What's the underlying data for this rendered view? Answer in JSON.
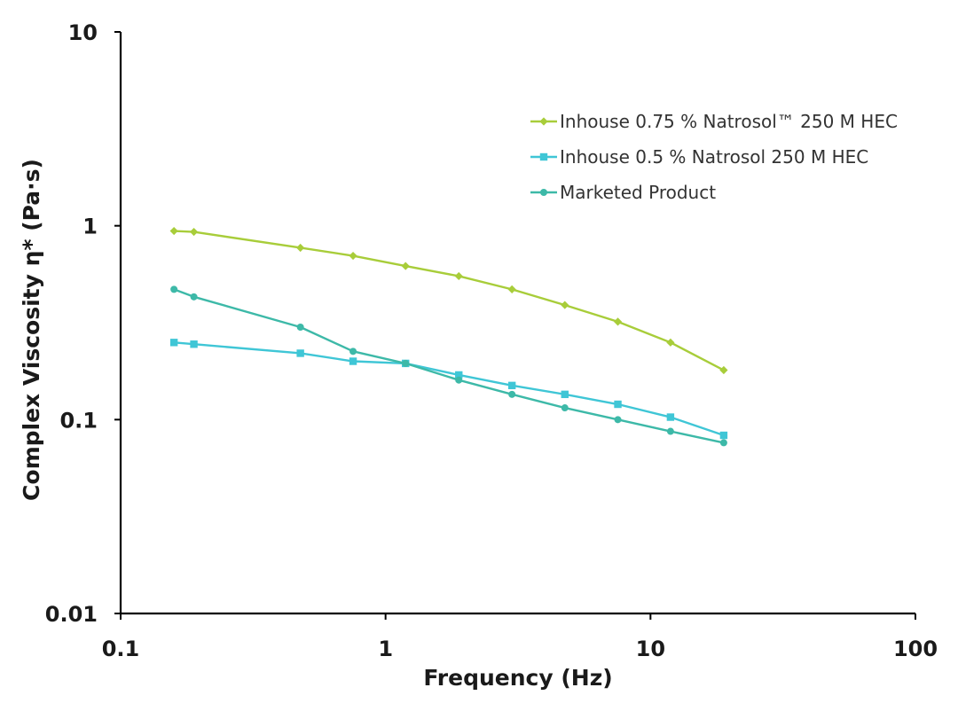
{
  "chart_data": {
    "type": "line",
    "xlabel": "Frequency (Hz)",
    "ylabel": "Complex Viscosity η* (Pa·s)",
    "x_scale": "log",
    "y_scale": "log",
    "xlim": [
      0.1,
      100
    ],
    "ylim": [
      0.01,
      10
    ],
    "x_ticks": [
      "0.1",
      "1",
      "10",
      "100"
    ],
    "y_ticks": [
      "0.01",
      "0.1",
      "1",
      "10"
    ],
    "grid": false,
    "legend_position": "top-right",
    "series": [
      {
        "name": "Inhouse 0.75 % Natrosol™ 250 M HEC",
        "color": "#a8cd3a",
        "marker": "diamond",
        "x": [
          0.159,
          0.189,
          0.477,
          0.754,
          1.19,
          1.89,
          3.0,
          4.75,
          7.53,
          11.9,
          18.9
        ],
        "y": [
          0.94,
          0.93,
          0.77,
          0.7,
          0.62,
          0.55,
          0.47,
          0.39,
          0.32,
          0.25,
          0.18
        ]
      },
      {
        "name": "Inhouse 0.5 % Natrosol 250 M HEC",
        "color": "#3fc6d6",
        "marker": "square",
        "x": [
          0.159,
          0.189,
          0.477,
          0.754,
          1.19,
          1.89,
          3.0,
          4.75,
          7.53,
          11.9,
          18.9
        ],
        "y": [
          0.25,
          0.245,
          0.22,
          0.2,
          0.195,
          0.17,
          0.15,
          0.135,
          0.12,
          0.103,
          0.083
        ]
      },
      {
        "name": "Marketed Product",
        "color": "#3db9a8",
        "marker": "circle",
        "x": [
          0.159,
          0.189,
          0.477,
          0.754,
          1.19,
          1.89,
          3.0,
          4.75,
          7.53,
          11.9,
          18.9
        ],
        "y": [
          0.47,
          0.43,
          0.3,
          0.225,
          0.195,
          0.16,
          0.135,
          0.115,
          0.1,
          0.087,
          0.076
        ]
      }
    ]
  }
}
